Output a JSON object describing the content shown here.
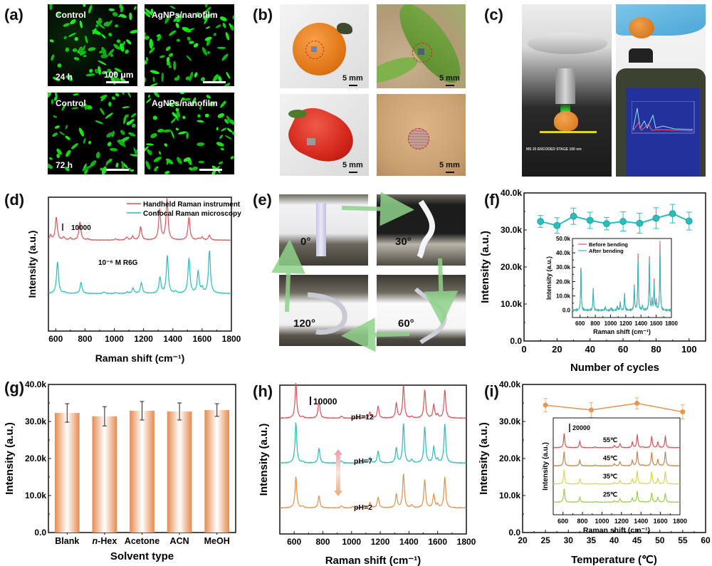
{
  "panels": {
    "a": {
      "label": "(a)",
      "tiles": [
        {
          "title": "Control",
          "time": "24 h",
          "scale": "100 μm"
        },
        {
          "title": "AgNPs/nanofilm",
          "time": "",
          "scale": ""
        },
        {
          "title": "Control",
          "time": "72 h",
          "scale": ""
        },
        {
          "title": "AgNPs/nanofilm",
          "time": "",
          "scale": ""
        }
      ]
    },
    "b": {
      "label": "(b)",
      "tiles": [
        {
          "subject": "tomato",
          "scale": "5 mm"
        },
        {
          "subject": "leaf",
          "scale": "5 mm"
        },
        {
          "subject": "strawberry",
          "scale": "5 mm"
        },
        {
          "subject": "skin",
          "scale": "5 mm"
        }
      ]
    },
    "c": {
      "label": "(c)",
      "stage_text": "MS 20 ENCODED STAGE 100 nm",
      "tiles": [
        {
          "subject": "confocal-microscope"
        },
        {
          "subject": "handheld-raman-instrument"
        }
      ]
    },
    "e": {
      "label": "(e)",
      "angles": [
        "0°",
        "30°",
        "120°",
        "60°"
      ]
    },
    "d": {
      "label": "(d)"
    },
    "f": {
      "label": "(f)"
    },
    "g": {
      "label": "(g)"
    },
    "h": {
      "label": "(h)"
    },
    "i": {
      "label": "(i)"
    }
  },
  "colors": {
    "red": "#d9545a",
    "cyan": "#2bbcbc",
    "orange": "#e58a4e",
    "orange_line": "#e8954f",
    "brown": "#c98552",
    "yellow": "#d8d84a",
    "green": "#9ccd4b",
    "arrow_green": "#8fd28a"
  },
  "chart_data": [
    {
      "id": "d",
      "type": "line",
      "title": "",
      "xlabel": "Raman shift (cm⁻¹)",
      "ylabel": "Intensity (a.u.)",
      "xlim": [
        550,
        1800
      ],
      "xticks": [
        600,
        800,
        1000,
        1200,
        1400,
        1600,
        1800
      ],
      "yticks_visible": false,
      "scale_bar_label": "10000",
      "annotation": "10⁻⁶ M R6G",
      "legend": {
        "position": "top-right",
        "entries": [
          "Handheld Raman instrument",
          "Confocal Raman microscopy"
        ]
      },
      "series": [
        {
          "name": "Handheld Raman instrument",
          "color": "#d9545a",
          "offset": 1,
          "peaks": [
            [
              565,
              0.2
            ],
            [
              604,
              0.95
            ],
            [
              655,
              0.12
            ],
            [
              700,
              0.08
            ],
            [
              765,
              0.75
            ],
            [
              820,
              0.05
            ],
            [
              1010,
              0.05
            ],
            [
              1085,
              0.12
            ],
            [
              1125,
              0.15
            ],
            [
              1180,
              0.55
            ],
            [
              1310,
              1.25
            ],
            [
              1360,
              1.7
            ],
            [
              1510,
              0.95
            ],
            [
              1575,
              0.06
            ],
            [
              1600,
              0.12
            ],
            [
              1650,
              0.2
            ]
          ]
        },
        {
          "name": "Confocal Raman microscopy",
          "color": "#2bbcbc",
          "offset": 0,
          "peaks": [
            [
              612,
              1.3
            ],
            [
              660,
              0.05
            ],
            [
              773,
              0.45
            ],
            [
              930,
              0.06
            ],
            [
              1010,
              0.03
            ],
            [
              1090,
              0.06
            ],
            [
              1128,
              0.22
            ],
            [
              1185,
              0.45
            ],
            [
              1312,
              0.65
            ],
            [
              1362,
              1.55
            ],
            [
              1420,
              0.08
            ],
            [
              1510,
              1.45
            ],
            [
              1573,
              0.9
            ],
            [
              1600,
              0.2
            ],
            [
              1650,
              1.75
            ]
          ]
        }
      ]
    },
    {
      "id": "f",
      "type": "line",
      "xlabel": "Number of cycles",
      "ylabel": "Intensity (a.u.)",
      "xlim": [
        0,
        110
      ],
      "ylim": [
        0,
        40000
      ],
      "xticks": [
        0,
        20,
        40,
        60,
        80,
        100
      ],
      "yticks": [
        0,
        10000,
        20000,
        30000,
        40000
      ],
      "ytick_labels": [
        "0.0",
        "10.0k",
        "20.0k",
        "30.0k",
        "40.0k"
      ],
      "series": [
        {
          "name": "Intensity",
          "color": "#2bbcbc",
          "x": [
            10,
            20,
            30,
            40,
            50,
            60,
            70,
            80,
            90,
            100
          ],
          "y": [
            32300,
            31200,
            33700,
            32600,
            31700,
            32300,
            31800,
            33200,
            34400,
            32400
          ],
          "err": [
            1600,
            2100,
            2200,
            2200,
            1700,
            2600,
            2700,
            2800,
            2500,
            2400
          ]
        }
      ],
      "inset": {
        "xlabel": "Raman shift (cm⁻¹)",
        "ylabel": "Intensity (a.u.)",
        "xlim": [
          500,
          1800
        ],
        "ylim": [
          -5000,
          50000
        ],
        "xticks": [
          600,
          800,
          1000,
          1200,
          1400,
          1600,
          1800
        ],
        "yticks": [
          0,
          10000,
          20000,
          30000,
          40000,
          50000
        ],
        "ytick_labels": [
          "0.0",
          "10.0k",
          "20.0k",
          "30.0k",
          "40.0k",
          "50.0k"
        ],
        "legend": {
          "position": "top-left",
          "entries": [
            "Before bending",
            "After bending"
          ]
        },
        "series": [
          {
            "name": "Before bending",
            "color": "#d9545a",
            "peaks": [
              [
                612,
                32000
              ],
              [
                773,
                15500
              ],
              [
                930,
                2500
              ],
              [
                1010,
                1500
              ],
              [
                1090,
                3000
              ],
              [
                1128,
                6000
              ],
              [
                1185,
                12500
              ],
              [
                1312,
                18000
              ],
              [
                1362,
                40500
              ],
              [
                1420,
                3500
              ],
              [
                1510,
                38000
              ],
              [
                1545,
                8000
              ],
              [
                1573,
                21000
              ],
              [
                1600,
                7500
              ],
              [
                1650,
                49000
              ]
            ]
          },
          {
            "name": "After bending",
            "color": "#2bbcbc",
            "peaks": [
              [
                612,
                31000
              ],
              [
                773,
                15000
              ],
              [
                930,
                2500
              ],
              [
                1010,
                1500
              ],
              [
                1090,
                3000
              ],
              [
                1128,
                5800
              ],
              [
                1185,
                11500
              ],
              [
                1312,
                17000
              ],
              [
                1362,
                36500
              ],
              [
                1420,
                3500
              ],
              [
                1510,
                34500
              ],
              [
                1545,
                8000
              ],
              [
                1573,
                18500
              ],
              [
                1600,
                7000
              ],
              [
                1650,
                42500
              ]
            ]
          }
        ]
      }
    },
    {
      "id": "g",
      "type": "bar",
      "xlabel": "Solvent type",
      "ylabel": "Intensity (a.u.)",
      "categories": [
        "Blank",
        "n-Hex",
        "Acetone",
        "ACN",
        "MeOH"
      ],
      "values": [
        32300,
        31400,
        32900,
        32700,
        33100
      ],
      "err": [
        2500,
        2600,
        2500,
        2300,
        1700
      ],
      "ylim": [
        0,
        40000
      ],
      "yticks": [
        0,
        10000,
        20000,
        30000,
        40000
      ],
      "ytick_labels": [
        "0.0",
        "10.0k",
        "20.0k",
        "30.0k",
        "40.0k"
      ],
      "color": "#e58a4e"
    },
    {
      "id": "h",
      "type": "line",
      "xlabel": "Raman shift (cm⁻¹)",
      "ylabel": "Intensity (a.u.)",
      "xlim": [
        500,
        1800
      ],
      "xticks": [
        600,
        800,
        1000,
        1200,
        1400,
        1600,
        1800
      ],
      "yticks_visible": false,
      "scale_bar_label": "10000",
      "series": [
        {
          "name": "pH=12",
          "color": "#d9545a",
          "offset": 2,
          "peaks": [
            [
              612,
              1.3
            ],
            [
              660,
              0.05
            ],
            [
              773,
              0.7
            ],
            [
              930,
              0.08
            ],
            [
              1090,
              0.06
            ],
            [
              1128,
              0.22
            ],
            [
              1185,
              0.45
            ],
            [
              1312,
              0.55
            ],
            [
              1362,
              1.2
            ],
            [
              1420,
              0.06
            ],
            [
              1510,
              1.05
            ],
            [
              1573,
              0.5
            ],
            [
              1600,
              0.12
            ],
            [
              1650,
              1.05
            ]
          ]
        },
        {
          "name": "pH=7",
          "color": "#2bbcbc",
          "offset": 1,
          "peaks": [
            [
              612,
              1.5
            ],
            [
              660,
              0.05
            ],
            [
              773,
              0.55
            ],
            [
              930,
              0.08
            ],
            [
              1090,
              0.06
            ],
            [
              1128,
              0.2
            ],
            [
              1185,
              0.45
            ],
            [
              1312,
              0.55
            ],
            [
              1362,
              1.45
            ],
            [
              1420,
              0.12
            ],
            [
              1510,
              1.35
            ],
            [
              1573,
              0.6
            ],
            [
              1600,
              0.12
            ],
            [
              1650,
              1.45
            ]
          ]
        },
        {
          "name": "pH=2",
          "color": "#e2914e",
          "offset": 0,
          "peaks": [
            [
              612,
              1.15
            ],
            [
              660,
              0.06
            ],
            [
              773,
              0.45
            ],
            [
              930,
              0.08
            ],
            [
              1010,
              0.05
            ],
            [
              1090,
              0.06
            ],
            [
              1128,
              0.2
            ],
            [
              1185,
              0.4
            ],
            [
              1312,
              0.5
            ],
            [
              1362,
              1.25
            ],
            [
              1420,
              0.1
            ],
            [
              1510,
              1.05
            ],
            [
              1573,
              0.5
            ],
            [
              1600,
              0.12
            ],
            [
              1650,
              1.15
            ]
          ]
        }
      ]
    },
    {
      "id": "i",
      "type": "line",
      "xlabel": "Temperature (℃)",
      "ylabel": "Intensity (a.u.)",
      "xlim": [
        20,
        60
      ],
      "ylim": [
        0,
        40000
      ],
      "xticks": [
        20,
        25,
        30,
        35,
        40,
        45,
        50,
        55,
        60
      ],
      "yticks": [
        0,
        10000,
        20000,
        30000,
        40000
      ],
      "ytick_labels": [
        "0.0",
        "10.0k",
        "20.0k",
        "30.0k",
        "40.0k"
      ],
      "series": [
        {
          "name": "Intensity",
          "color": "#e8954f",
          "x": [
            25,
            35,
            45,
            55
          ],
          "y": [
            34400,
            33100,
            34900,
            32600
          ],
          "err": [
            1800,
            2000,
            1500,
            1900
          ]
        }
      ],
      "inset": {
        "xlabel": "Raman shift (cm⁻¹)",
        "ylabel": "Intensity (a.u.)",
        "xlim": [
          500,
          1800
        ],
        "xticks": [
          600,
          800,
          1000,
          1200,
          1400,
          1600,
          1800
        ],
        "scale_bar_label": "20000",
        "series": [
          {
            "name": "55℃",
            "color": "#d9545a",
            "offset": 3,
            "peaks": [
              [
                612,
                1.0
              ],
              [
                773,
                0.45
              ],
              [
                930,
                0.06
              ],
              [
                1128,
                0.15
              ],
              [
                1185,
                0.3
              ],
              [
                1312,
                0.4
              ],
              [
                1362,
                0.9
              ],
              [
                1420,
                0.06
              ],
              [
                1510,
                0.8
              ],
              [
                1573,
                0.4
              ],
              [
                1650,
                0.8
              ]
            ]
          },
          {
            "name": "45℃",
            "color": "#c98552",
            "offset": 2,
            "peaks": [
              [
                612,
                1.0
              ],
              [
                773,
                0.4
              ],
              [
                930,
                0.06
              ],
              [
                1128,
                0.15
              ],
              [
                1185,
                0.3
              ],
              [
                1312,
                0.4
              ],
              [
                1362,
                1.0
              ],
              [
                1420,
                0.06
              ],
              [
                1510,
                0.95
              ],
              [
                1573,
                0.45
              ],
              [
                1650,
                1.0
              ]
            ]
          },
          {
            "name": "35℃",
            "color": "#d8d84a",
            "offset": 1,
            "peaks": [
              [
                612,
                1.0
              ],
              [
                773,
                0.35
              ],
              [
                930,
                0.05
              ],
              [
                1128,
                0.12
              ],
              [
                1185,
                0.25
              ],
              [
                1312,
                0.35
              ],
              [
                1362,
                0.9
              ],
              [
                1420,
                0.05
              ],
              [
                1510,
                0.85
              ],
              [
                1573,
                0.4
              ],
              [
                1650,
                0.85
              ]
            ]
          },
          {
            "name": "25℃",
            "color": "#9ccd4b",
            "offset": 0,
            "peaks": [
              [
                612,
                0.95
              ],
              [
                773,
                0.35
              ],
              [
                930,
                0.05
              ],
              [
                1128,
                0.1
              ],
              [
                1185,
                0.25
              ],
              [
                1312,
                0.3
              ],
              [
                1362,
                0.75
              ],
              [
                1420,
                0.05
              ],
              [
                1510,
                0.65
              ],
              [
                1573,
                0.35
              ],
              [
                1650,
                0.6
              ]
            ]
          }
        ]
      }
    }
  ]
}
